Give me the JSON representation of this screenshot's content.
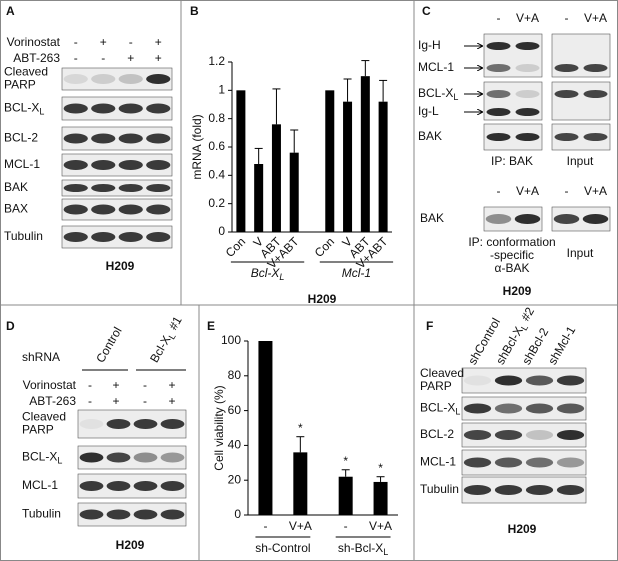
{
  "panels": [
    {
      "label": "A",
      "treatments": [
        {
          "name": "Vorinostat",
          "signs": [
            "-",
            "+",
            "-",
            "+"
          ]
        },
        {
          "name": "ABT-263",
          "signs": [
            "-",
            "-",
            "+",
            "+"
          ]
        }
      ],
      "blots": [
        {
          "lines": [
            "Cleaved",
            "PARP"
          ]
        },
        {
          "text": "BCL-X",
          "sub": "L"
        },
        "BCL-2",
        "MCL-1",
        "BAK",
        "BAX",
        "Tubulin"
      ],
      "cell_line": "H209"
    },
    {
      "label": "C",
      "ip": {
        "ip_conditions": [
          "-",
          "V+A"
        ],
        "input_conditions": [
          "-",
          "V+A"
        ],
        "blots": [
          "Ig-H",
          "MCL-1",
          {
            "text": "BCL-X",
            "sub": "L"
          },
          "Ig-L",
          "BAK"
        ],
        "ip_label": "IP: BAK",
        "input_label": "Input"
      },
      "conformation": {
        "ip_conditions": [
          "-",
          "V+A"
        ],
        "input_conditions": [
          "-",
          "V+A"
        ],
        "blots": [
          "BAK"
        ],
        "ip_label": {
          "lines": [
            "IP: conformation",
            "-specific",
            "α-BAK"
          ]
        },
        "input_label": "Input"
      },
      "cell_line": "H209"
    },
    {
      "label": "D",
      "shrna_label": "shRNA",
      "shrna": [
        "Control",
        {
          "text": "Bcl-X",
          "sub": "L",
          "tail": "#1"
        }
      ],
      "treatments": [
        {
          "name": "Vorinostat",
          "signs": [
            "-",
            "+",
            "-",
            "+"
          ]
        },
        {
          "name": "ABT-263",
          "signs": [
            "-",
            "+",
            "-",
            "+"
          ]
        }
      ],
      "blots": [
        {
          "lines": [
            "Cleaved",
            "PARP"
          ]
        },
        {
          "text": "BCL-X",
          "sub": "L"
        },
        "MCL-1",
        "Tubulin"
      ],
      "cell_line": "H209"
    },
    {
      "label": "F",
      "shrna": [
        "shControl",
        {
          "text": "shBcl-X",
          "sub": "L",
          "tail": "#2"
        },
        "shBcl-2",
        "shMcl-1"
      ],
      "blots": [
        {
          "lines": [
            "Cleaved",
            "PARP"
          ]
        },
        {
          "text": "BCL-X",
          "sub": "L"
        },
        "BCL-2",
        "MCL-1",
        "Tubulin"
      ],
      "cell_line": "H209"
    }
  ],
  "chart_data": [
    {
      "panel": "B",
      "type": "bar",
      "ylabel": "mRNA (fold)",
      "color": "#000000",
      "ylim": [
        0,
        1.2
      ],
      "yticks": [
        0,
        0.2,
        0.4,
        0.6,
        0.8,
        1,
        1.2
      ],
      "groups": [
        {
          "name": {
            "text": "Bcl-X",
            "sub": "L"
          },
          "categories": [
            "Con",
            "V",
            "ABT",
            "V+ABT"
          ],
          "values": [
            1,
            0.48,
            0.76,
            0.56
          ],
          "errors": [
            null,
            0.11,
            0.25,
            0.16
          ]
        },
        {
          "name": "Mcl-1",
          "categories": [
            "Con",
            "V",
            "ABT",
            "V+ABT"
          ],
          "values": [
            1,
            0.92,
            1.1,
            0.92
          ],
          "errors": [
            null,
            0.16,
            0.11,
            0.15
          ]
        }
      ],
      "cell_line": "H209"
    },
    {
      "panel": "E",
      "type": "bar",
      "ylabel": "Cell viability (%)",
      "color": "#000000",
      "ylim": [
        0,
        100
      ],
      "yticks": [
        0,
        20,
        40,
        60,
        80,
        100
      ],
      "groups": [
        {
          "name": "sh-Control",
          "categories": [
            "-",
            "V+A"
          ],
          "values": [
            100,
            36
          ],
          "errors": [
            null,
            9
          ],
          "significance": [
            null,
            "*"
          ]
        },
        {
          "name": {
            "text": "sh-Bcl-X",
            "sub": "L"
          },
          "categories": [
            "-",
            "V+A"
          ],
          "values": [
            22,
            19
          ],
          "errors": [
            4,
            3
          ],
          "significance": [
            "*",
            "*"
          ]
        }
      ]
    }
  ]
}
